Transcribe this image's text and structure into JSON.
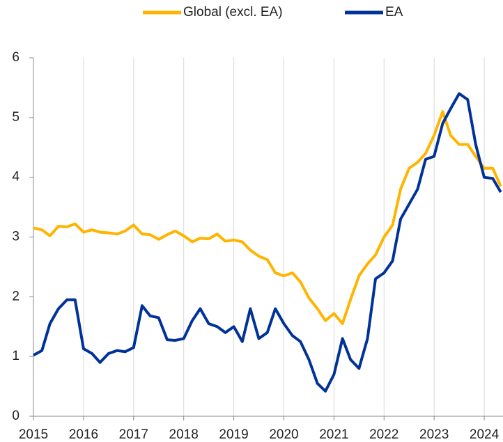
{
  "chart_data": {
    "type": "line",
    "x": [
      2015.0,
      2015.17,
      2015.33,
      2015.5,
      2015.67,
      2015.83,
      2016.0,
      2016.17,
      2016.33,
      2016.5,
      2016.67,
      2016.83,
      2017.0,
      2017.17,
      2017.33,
      2017.5,
      2017.67,
      2017.83,
      2018.0,
      2018.17,
      2018.33,
      2018.5,
      2018.67,
      2018.83,
      2019.0,
      2019.17,
      2019.33,
      2019.5,
      2019.67,
      2019.83,
      2020.0,
      2020.17,
      2020.33,
      2020.5,
      2020.67,
      2020.83,
      2021.0,
      2021.17,
      2021.33,
      2021.5,
      2021.67,
      2021.83,
      2022.0,
      2022.17,
      2022.33,
      2022.5,
      2022.67,
      2022.83,
      2023.0,
      2023.17,
      2023.33,
      2023.5,
      2023.67,
      2023.83,
      2024.0,
      2024.17,
      2024.33
    ],
    "series": [
      {
        "name": "Global (excl. EA)",
        "color": "#ffb400",
        "values": [
          3.15,
          3.12,
          3.02,
          3.18,
          3.17,
          3.22,
          3.08,
          3.12,
          3.08,
          3.07,
          3.05,
          3.1,
          3.2,
          3.05,
          3.04,
          2.96,
          3.04,
          3.1,
          3.02,
          2.92,
          2.98,
          2.97,
          3.05,
          2.93,
          2.95,
          2.92,
          2.78,
          2.68,
          2.62,
          2.4,
          2.35,
          2.4,
          2.25,
          1.98,
          1.8,
          1.6,
          1.72,
          1.55,
          1.95,
          2.35,
          2.55,
          2.7,
          3.0,
          3.2,
          3.8,
          4.15,
          4.25,
          4.4,
          4.7,
          5.1,
          4.7,
          4.55,
          4.55,
          4.35,
          4.15,
          4.15,
          3.85
        ]
      },
      {
        "name": "EA",
        "color": "#003299",
        "values": [
          1.02,
          1.1,
          1.55,
          1.8,
          1.95,
          1.95,
          1.13,
          1.05,
          0.9,
          1.05,
          1.1,
          1.08,
          1.15,
          1.85,
          1.68,
          1.65,
          1.28,
          1.27,
          1.3,
          1.6,
          1.8,
          1.55,
          1.5,
          1.4,
          1.5,
          1.25,
          1.8,
          1.3,
          1.4,
          1.8,
          1.55,
          1.35,
          1.25,
          0.95,
          0.55,
          0.42,
          0.7,
          1.3,
          0.95,
          0.8,
          1.3,
          2.3,
          2.4,
          2.6,
          3.3,
          3.55,
          3.8,
          4.3,
          4.35,
          4.9,
          5.15,
          5.4,
          5.3,
          4.55,
          4.0,
          3.98,
          3.75
        ]
      }
    ],
    "xlim": [
      2015,
      2024.375
    ],
    "xticks": [
      2015,
      2016,
      2017,
      2018,
      2019,
      2020,
      2021,
      2022,
      2023,
      2024
    ],
    "ylim": [
      0,
      6
    ],
    "yticks": [
      0,
      1,
      2,
      3,
      4,
      5,
      6
    ],
    "grid": "x",
    "legend": "top"
  }
}
